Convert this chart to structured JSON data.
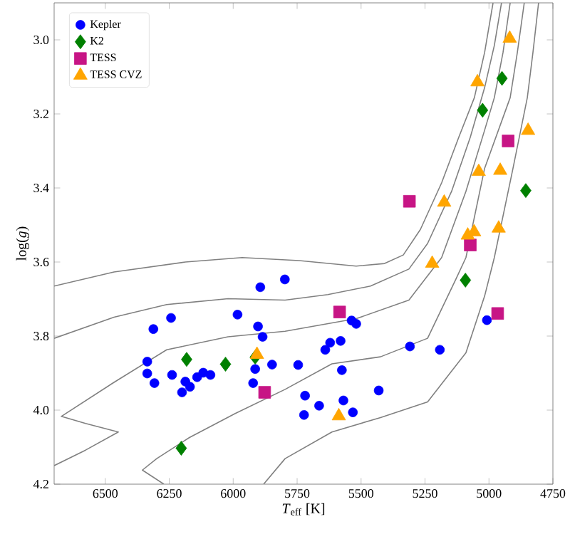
{
  "chart_data": {
    "type": "scatter",
    "xlabel": "*T*$_{eff}$ [K]",
    "ylabel": "log(*g*)",
    "xlim": [
      6700,
      4750
    ],
    "ylim": [
      4.2,
      2.9
    ],
    "xticks": [
      6500,
      6250,
      6000,
      5750,
      5500,
      5250,
      5000,
      4750
    ],
    "yticks": [
      {
        "value": 3.0,
        "label": "3.0"
      },
      {
        "value": 3.2,
        "label": "3.2"
      },
      {
        "value": 3.4,
        "label": "3.4"
      },
      {
        "value": 3.6,
        "label": "3.6"
      },
      {
        "value": 3.8,
        "label": "3.8"
      },
      {
        "value": 4.0,
        "label": "4.0"
      },
      {
        "value": 4.2,
        "label": "4.2"
      }
    ],
    "grid": false,
    "legend": "top left",
    "series": [
      {
        "type": "line",
        "color": "#808080",
        "x": [
          6700,
          6466,
          6187,
          5965,
          5742,
          5519,
          5408,
          5335,
          5268,
          5185,
          5118,
          5057,
          5017,
          4984
        ],
        "values": [
          3.665,
          3.627,
          3.6,
          3.588,
          3.596,
          3.611,
          3.604,
          3.581,
          3.512,
          3.386,
          3.263,
          3.156,
          3.034,
          2.9
        ]
      },
      {
        "type": "line",
        "color": "#808080",
        "x": [
          6700,
          6466,
          6260,
          6020,
          5797,
          5630,
          5463,
          5313,
          5240,
          5146,
          5073,
          5017,
          4979,
          4951
        ],
        "values": [
          3.806,
          3.749,
          3.715,
          3.699,
          3.703,
          3.688,
          3.665,
          3.619,
          3.55,
          3.409,
          3.263,
          3.129,
          3.015,
          2.9
        ]
      },
      {
        "type": "line",
        "color": "#808080",
        "x": [
          6700,
          6577,
          6449,
          6577,
          6672,
          6466,
          6260,
          6020,
          5797,
          5519,
          5313,
          5185,
          5090,
          5017,
          4979,
          4945,
          4917
        ],
        "values": [
          4.15,
          4.108,
          4.059,
          4.036,
          4.017,
          3.925,
          3.837,
          3.802,
          3.787,
          3.753,
          3.703,
          3.588,
          3.409,
          3.244,
          3.156,
          3.034,
          2.9
        ]
      },
      {
        "type": "line",
        "color": "#808080",
        "x": [
          6271,
          6355,
          6299,
          6171,
          5992,
          5797,
          5614,
          5424,
          5240,
          5129,
          5090,
          5017,
          4917,
          4889,
          4862
        ],
        "values": [
          4.2,
          4.162,
          4.131,
          4.074,
          4.009,
          3.944,
          3.875,
          3.856,
          3.806,
          3.646,
          3.588,
          3.347,
          3.156,
          3.034,
          2.9
        ]
      },
      {
        "type": "line",
        "color": "#808080",
        "x": [
          5881,
          5797,
          5614,
          5424,
          5240,
          5090,
          5017,
          4979,
          4906,
          4850,
          4828,
          4806
        ],
        "values": [
          4.2,
          4.131,
          4.059,
          4.02,
          3.978,
          3.845,
          3.692,
          3.588,
          3.347,
          3.156,
          3.034,
          2.9
        ]
      },
      {
        "name": "Kepler",
        "color": "#0000ff",
        "marker": "circle",
        "x": [
          6336,
          6336,
          6308,
          6312,
          6243,
          6239,
          6187,
          6200,
          6169,
          6141,
          6117,
          6089,
          5983,
          5903,
          5885,
          5894,
          5914,
          5922,
          5848,
          5798,
          5537,
          5519,
          5621,
          5640,
          5580,
          5746,
          5575,
          5309,
          5192,
          5008,
          5719,
          5723,
          5664,
          5569,
          5532,
          5431
        ],
        "values": [
          3.869,
          3.901,
          3.927,
          3.781,
          3.751,
          3.905,
          3.923,
          3.952,
          3.937,
          3.911,
          3.899,
          3.905,
          3.742,
          3.774,
          3.802,
          3.668,
          3.889,
          3.927,
          3.877,
          3.647,
          3.758,
          3.767,
          3.818,
          3.837,
          3.813,
          3.878,
          3.892,
          3.828,
          3.837,
          3.757,
          3.961,
          4.013,
          3.988,
          3.974,
          4.006,
          3.947
        ]
      },
      {
        "name": "K2",
        "color": "#008000",
        "marker": "diamond",
        "x": [
          6182,
          6030,
          5914,
          6203,
          5092,
          4949,
          5025,
          4856
        ],
        "values": [
          3.863,
          3.876,
          3.857,
          4.103,
          3.649,
          3.104,
          3.19,
          3.407
        ]
      },
      {
        "name": "TESS",
        "color": "#c71585",
        "marker": "square",
        "x": [
          5877,
          5584,
          4966,
          5311,
          4925,
          5073
        ],
        "values": [
          3.952,
          3.735,
          3.739,
          3.436,
          3.273,
          3.554
        ]
      },
      {
        "name": "TESS CVZ",
        "color": "#ffa500",
        "marker": "triangle",
        "x": [
          5907,
          5587,
          5222,
          4919,
          5045,
          4847,
          5040,
          4956,
          5175,
          5083,
          5058,
          4962
        ],
        "values": [
          3.85,
          4.016,
          3.604,
          2.996,
          3.114,
          3.245,
          3.356,
          3.353,
          3.439,
          3.528,
          3.519,
          3.509
        ]
      }
    ]
  }
}
